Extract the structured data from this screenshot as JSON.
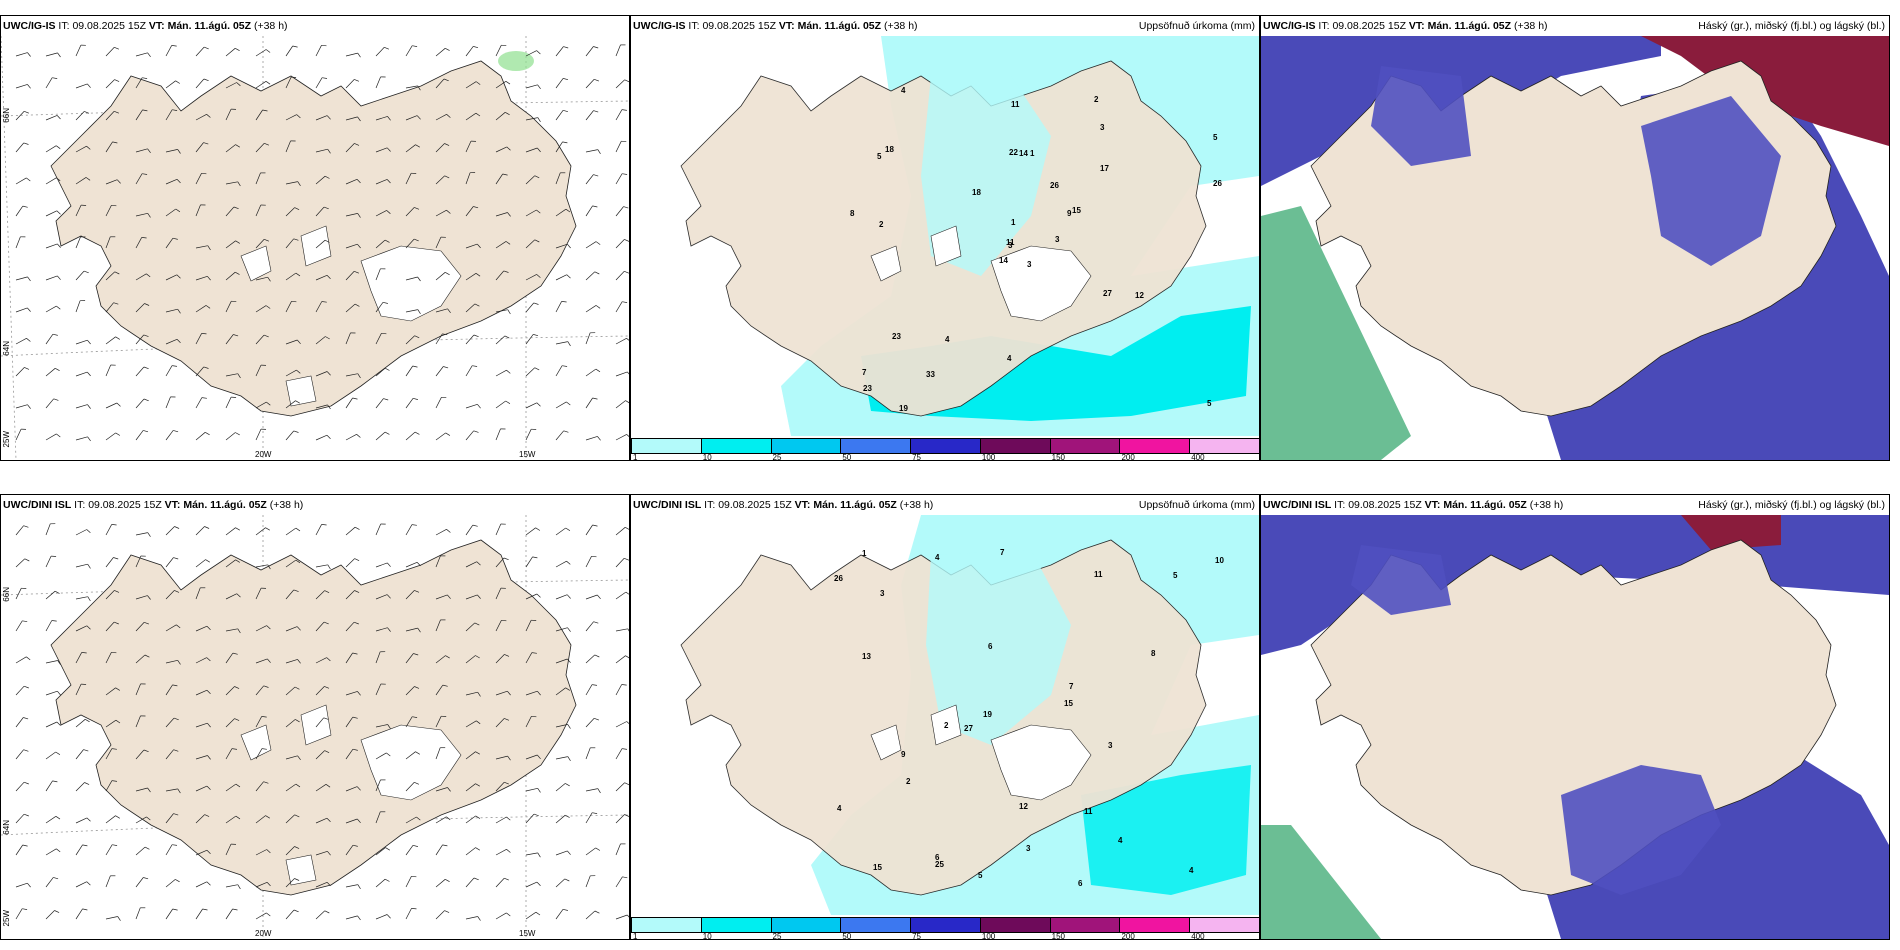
{
  "rows": [
    {
      "model": "UWC/IG-IS",
      "it_label": "IT:",
      "it_value": "09.08.2025 15Z",
      "vt_label": "VT:",
      "vt_value": "Mán. 11.ágú. 05Z",
      "lead": "(+38 h)"
    },
    {
      "model": "UWC/DINI ISL",
      "it_label": "IT:",
      "it_value": "09.08.2025 15Z",
      "vt_label": "VT:",
      "vt_value": "Mán. 11.ágú. 05Z",
      "lead": "(+38 h)"
    }
  ],
  "precip_title": "Uppsöfnuð úrkoma (mm)",
  "cloud_title": "Háský (gr.), miðský (fj.bl.) og lágský (bl.)",
  "colorbar": {
    "labels": [
      "1",
      "10",
      "25",
      "50",
      "75",
      "100",
      "150",
      "200",
      "400"
    ],
    "colors": [
      "#b3fafa",
      "#00eef0",
      "#00c8f0",
      "#3c78f0",
      "#2828c8",
      "#6e0a5a",
      "#a0147a",
      "#f014a0",
      "#f5b4f0"
    ]
  },
  "grid_labels": {
    "lon": [
      "20W",
      "15W"
    ],
    "lat_top": "66N",
    "lat_mid": "64N",
    "lon_corner": "25W"
  },
  "colors": {
    "land": "#efe3d4",
    "light_precip": "#b3fafa",
    "precip_10": "#00eef0",
    "cloud_high": "#6b3d8c",
    "cloud_mid": "#5050c0",
    "cloud_low": "#4a4ab8",
    "cloud_top": "#8a1c3c",
    "green_band": "#3aa870"
  },
  "precip_numbers_top": [
    "3",
    "5",
    "3",
    "7",
    "9",
    "4",
    "2",
    "1",
    "3",
    "3",
    "4",
    "5",
    "2",
    "5",
    "14",
    "17",
    "19",
    "22",
    "26",
    "23",
    "18",
    "23",
    "33",
    "14",
    "15",
    "12",
    "18",
    "11",
    "8",
    "27",
    "26",
    "11",
    "4",
    "1"
  ],
  "precip_numbers_bottom": [
    "5",
    "6",
    "6",
    "4",
    "4",
    "3",
    "2",
    "4",
    "7",
    "6",
    "5",
    "3",
    "19",
    "12",
    "11",
    "15",
    "13",
    "25",
    "27",
    "26",
    "11",
    "10",
    "7",
    "15",
    "8",
    "9",
    "4",
    "2",
    "1",
    "3"
  ]
}
